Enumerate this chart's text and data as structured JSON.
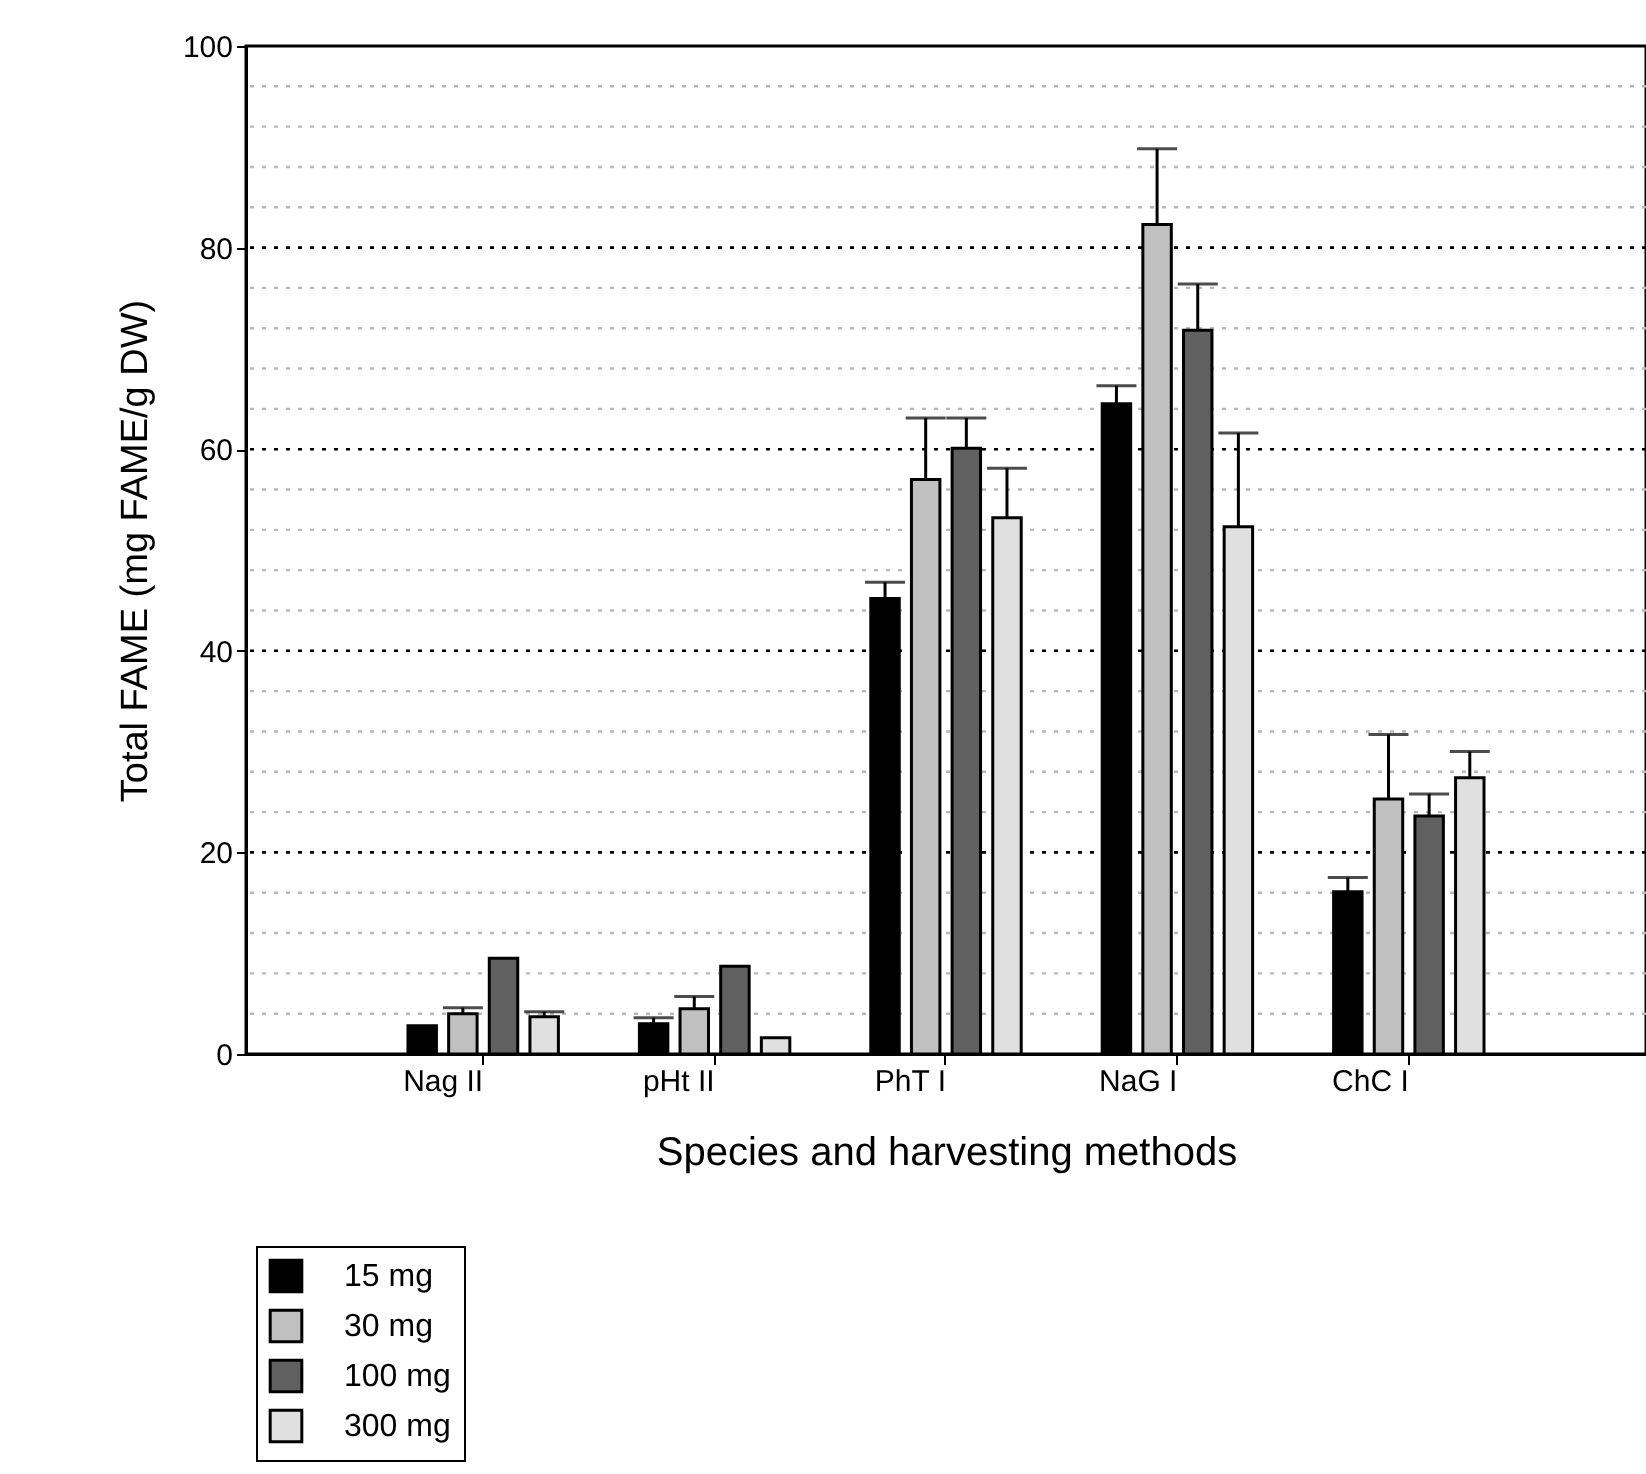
{
  "chart_data": {
    "type": "bar",
    "xlabel": "Species and harvesting methods",
    "ylabel": "Total FAME (mg FAME/g DW)",
    "categories": [
      "Nag II",
      "pHt II",
      "PhT I",
      "NaG I",
      "ChC I"
    ],
    "series": [
      {
        "name": "15 mg",
        "color": "#000000",
        "values": [
          2.8,
          3.0,
          45.2,
          64.5,
          16.1
        ],
        "errors": [
          null,
          [
            3.0,
            3.6
          ],
          [
            45.2,
            46.8
          ],
          [
            64.5,
            66.3
          ],
          [
            16.1,
            17.5
          ]
        ]
      },
      {
        "name": "30 mg",
        "color": "#c0c0c0",
        "values": [
          4.0,
          4.5,
          57.0,
          82.3,
          25.3
        ],
        "errors": [
          [
            4.0,
            4.6
          ],
          [
            4.5,
            5.7
          ],
          [
            57.0,
            63.1
          ],
          [
            82.3,
            89.8
          ],
          [
            25.3,
            31.7
          ]
        ]
      },
      {
        "name": "100 mg",
        "color": "#606060",
        "values": [
          9.5,
          8.7,
          60.1,
          71.8,
          23.6
        ],
        "errors": [
          null,
          null,
          [
            60.1,
            63.1
          ],
          [
            71.8,
            76.4
          ],
          [
            23.6,
            25.8
          ]
        ]
      },
      {
        "name": "300 mg",
        "color": "#e0e0e0",
        "values": [
          3.7,
          1.6,
          53.2,
          52.3,
          27.4
        ],
        "errors": [
          [
            3.7,
            4.2
          ],
          null,
          [
            53.2,
            58.1
          ],
          [
            52.3,
            61.6
          ],
          [
            27.4,
            30.0
          ]
        ]
      }
    ],
    "ylim": [
      0,
      100
    ],
    "yticks": [
      0,
      {
        "value": 4,
        "label": null
      },
      {
        "value": 8,
        "label": null
      },
      {
        "value": 12,
        "label": null
      },
      {
        "value": 16,
        "label": null
      },
      20,
      {
        "value": 24,
        "label": null
      },
      {
        "value": 28,
        "label": null
      },
      {
        "value": 32,
        "label": null
      },
      {
        "value": 36,
        "label": null
      },
      40,
      {
        "value": 44,
        "label": null
      },
      {
        "value": 48,
        "label": null
      },
      {
        "value": 52,
        "label": null
      },
      {
        "value": 56,
        "label": null
      },
      60,
      {
        "value": 64,
        "label": null
      },
      {
        "value": 68,
        "label": null
      },
      {
        "value": 72,
        "label": null
      },
      {
        "value": 76,
        "label": null
      },
      80,
      {
        "value": 84,
        "label": null
      },
      {
        "value": 88,
        "label": null
      },
      {
        "value": 92,
        "label": null
      },
      {
        "value": 96,
        "label": null
      },
      100
    ],
    "grid": "y",
    "legend": "bottom left"
  }
}
